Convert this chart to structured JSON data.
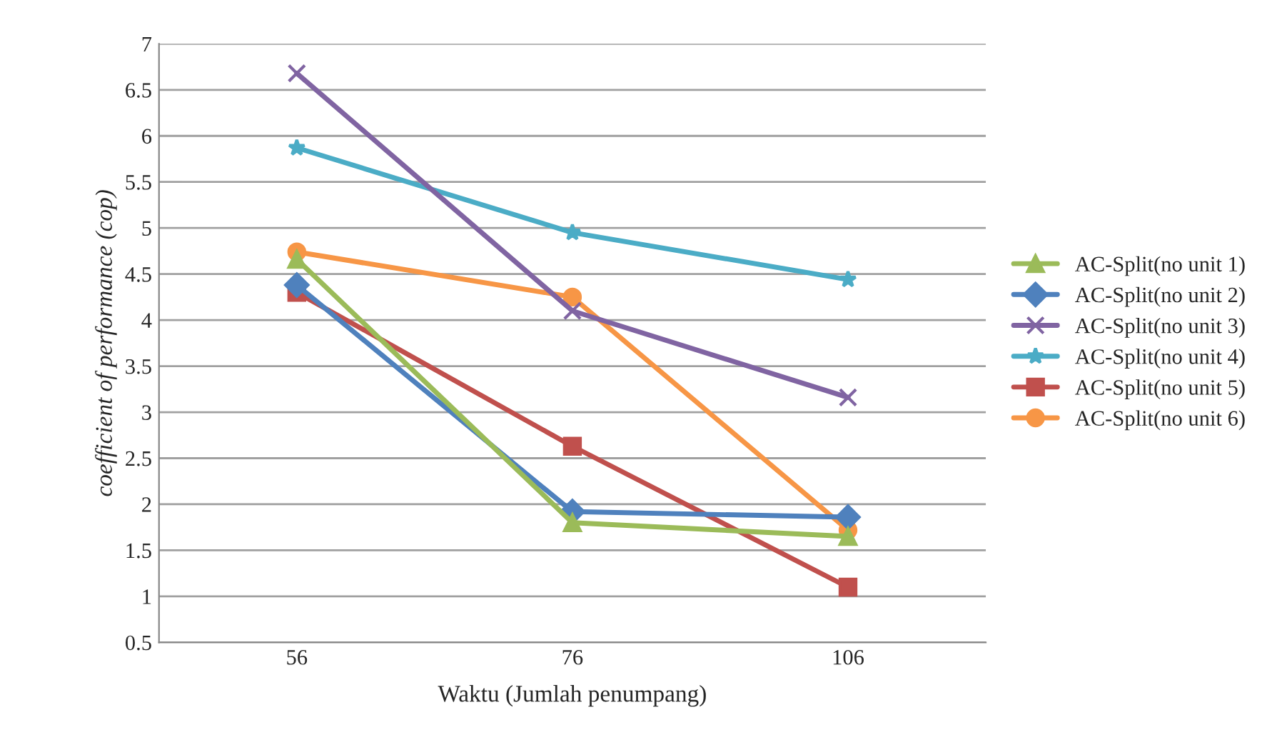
{
  "chart_data": {
    "type": "line",
    "xlabel": "Waktu (Jumlah penumpang)",
    "ylabel": "coefficient of performance (cop)",
    "categories": [
      "56",
      "76",
      "106"
    ],
    "series": [
      {
        "name": "AC-Split(no unit 1)",
        "color": "#9bbb59",
        "marker": "triangle",
        "values": [
          4.66,
          1.8,
          1.65
        ]
      },
      {
        "name": "AC-Split(no unit 2)",
        "color": "#4f81bd",
        "marker": "diamond",
        "values": [
          4.38,
          1.92,
          1.86
        ]
      },
      {
        "name": "AC-Split(no unit 3)",
        "color": "#8064a2",
        "marker": "cross",
        "values": [
          6.68,
          4.1,
          3.16
        ]
      },
      {
        "name": "AC-Split(no unit 4)",
        "color": "#4bacc6",
        "marker": "star",
        "values": [
          5.87,
          4.95,
          4.44
        ]
      },
      {
        "name": "AC-Split(no unit 5)",
        "color": "#c0504d",
        "marker": "square",
        "values": [
          4.3,
          2.63,
          1.1
        ]
      },
      {
        "name": "AC-Split(no unit 6)",
        "color": "#f79646",
        "marker": "circle",
        "values": [
          4.74,
          4.25,
          1.72
        ]
      }
    ],
    "ylim": [
      0.5,
      7
    ],
    "yticks": [
      0.5,
      1,
      1.5,
      2,
      2.5,
      3,
      3.5,
      4,
      4.5,
      5,
      5.5,
      6,
      6.5,
      7
    ],
    "grid": "y",
    "legend": "right"
  }
}
